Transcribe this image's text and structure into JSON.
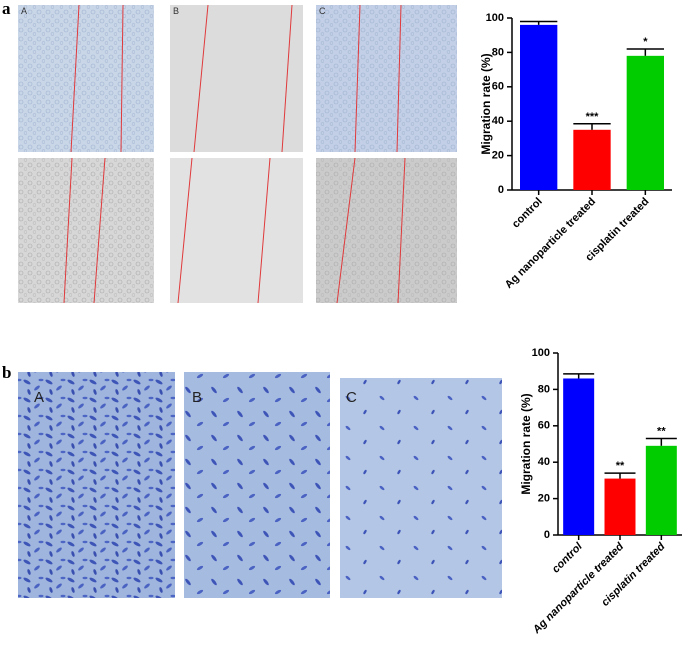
{
  "figure": {
    "panels": [
      {
        "label": "a",
        "image_labels": [
          "A",
          "B",
          "C"
        ]
      },
      {
        "label": "b",
        "image_labels": [
          "A",
          "B",
          "C"
        ]
      }
    ]
  },
  "chart_data": [
    {
      "type": "bar",
      "ylabel": "Migration rate (%)",
      "categories": [
        "control",
        "Ag nanoparticle treated",
        "cisplatin treated"
      ],
      "values": [
        96,
        35,
        78
      ],
      "errors": [
        2,
        3.5,
        4
      ],
      "annotations": [
        null,
        "***",
        "*"
      ],
      "colors": [
        "#0000ff",
        "#ff0000",
        "#00cc00"
      ],
      "ylim": [
        0,
        100
      ],
      "yticks": [
        0,
        20,
        40,
        60,
        80,
        100
      ],
      "italic_labels": false
    },
    {
      "type": "bar",
      "ylabel": "Migration rate (%)",
      "categories": [
        "control",
        "Ag nanoparticle treated",
        "cisplatin treated"
      ],
      "values": [
        86,
        31,
        49
      ],
      "errors": [
        2.5,
        3,
        4
      ],
      "annotations": [
        null,
        "**",
        "**"
      ],
      "colors": [
        "#0000ff",
        "#ff0000",
        "#00cc00"
      ],
      "ylim": [
        0,
        100
      ],
      "yticks": [
        0,
        20,
        40,
        60,
        80,
        100
      ],
      "italic_labels": true
    }
  ]
}
